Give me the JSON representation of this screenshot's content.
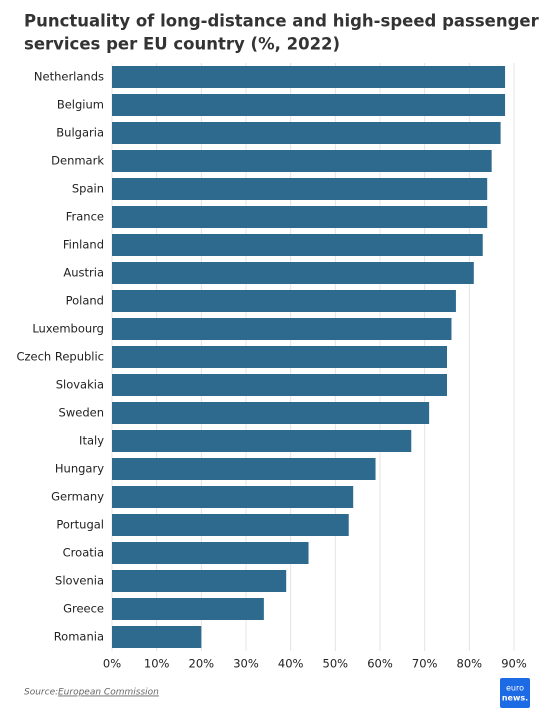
{
  "chart_data": {
    "type": "bar",
    "orientation": "horizontal",
    "title": [
      "Punctuality of long-distance and high-speed passenger train",
      "services per EU country (%, 2022)"
    ],
    "categories": [
      "Netherlands",
      "Belgium",
      "Bulgaria",
      "Denmark",
      "Spain",
      "France",
      "Finland",
      "Austria",
      "Poland",
      "Luxembourg",
      "Czech Republic",
      "Slovakia",
      "Sweden",
      "Italy",
      "Hungary",
      "Germany",
      "Portugal",
      "Croatia",
      "Slovenia",
      "Greece",
      "Romania"
    ],
    "values": [
      88,
      88,
      87,
      85,
      84,
      84,
      83,
      81,
      77,
      76,
      75,
      75,
      71,
      67,
      59,
      54,
      53,
      44,
      39,
      34,
      20
    ],
    "color": "#2e6a8e",
    "xlim": [
      0,
      90
    ],
    "xticks": [
      {
        "value": 0,
        "label": "0%"
      },
      {
        "value": 10,
        "label": "10%"
      },
      {
        "value": 20,
        "label": "20%"
      },
      {
        "value": 30,
        "label": "30%"
      },
      {
        "value": 40,
        "label": "40%"
      },
      {
        "value": 50,
        "label": "50%"
      },
      {
        "value": 60,
        "label": "60%"
      },
      {
        "value": 70,
        "label": "70%"
      },
      {
        "value": 80,
        "label": "80%"
      },
      {
        "value": 90,
        "label": "90%"
      }
    ],
    "grid": true,
    "source_label": "Source:",
    "source": "European Commission",
    "logo": [
      "euro",
      "news."
    ]
  }
}
